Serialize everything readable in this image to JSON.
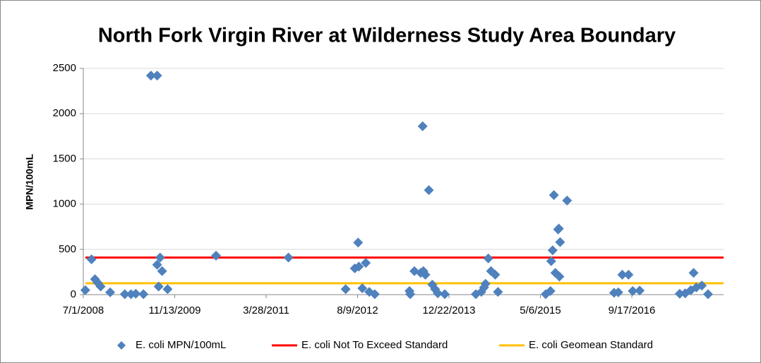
{
  "chart_data": {
    "type": "scatter",
    "title": "North Fork Virgin River at Wilderness Study Area Boundary",
    "y_label": "MPN/100mL",
    "xlim": [
      "2008-07-01",
      "2018-02-01"
    ],
    "xticks": [
      {
        "value": "2008-07-01",
        "label": "7/1/2008"
      },
      {
        "value": "2009-11-13",
        "label": "11/13/2009"
      },
      {
        "value": "2011-03-28",
        "label": "3/28/2011"
      },
      {
        "value": "2012-08-09",
        "label": "8/9/2012"
      },
      {
        "value": "2013-12-22",
        "label": "12/22/2013"
      },
      {
        "value": "2015-05-06",
        "label": "5/6/2015"
      },
      {
        "value": "2016-09-17",
        "label": "9/17/2016"
      }
    ],
    "ylim": [
      0,
      2500
    ],
    "yticks": [
      0,
      500,
      1000,
      1500,
      2000,
      2500
    ],
    "grid": true,
    "legend": "bottom",
    "series": [
      {
        "name": "E. coli MPN/100mL",
        "color": "#4f81bd",
        "mode": "markers",
        "x": [
          "2008-07-12",
          "2008-08-15",
          "2008-09-03",
          "2008-09-18",
          "2008-10-04",
          "2008-11-25",
          "2009-02-13",
          "2009-03-19",
          "2009-04-14",
          "2009-05-26",
          "2009-07-06",
          "2009-08-09",
          "2009-08-09",
          "2009-08-17",
          "2009-08-25",
          "2009-09-05",
          "2009-10-05",
          "2010-06-27",
          "2011-07-28",
          "2012-06-05",
          "2012-07-25",
          "2012-08-12",
          "2012-08-16",
          "2012-09-04",
          "2012-09-23",
          "2012-10-12",
          "2012-11-11",
          "2013-05-20",
          "2013-05-24",
          "2013-06-16",
          "2013-07-20",
          "2013-07-31",
          "2013-08-04",
          "2013-08-15",
          "2013-09-03",
          "2013-09-22",
          "2013-10-07",
          "2013-10-22",
          "2013-11-29",
          "2014-05-18",
          "2014-06-17",
          "2014-07-02",
          "2014-07-10",
          "2014-07-25",
          "2014-08-09",
          "2014-09-01",
          "2014-09-16",
          "2015-06-04",
          "2015-06-30",
          "2015-07-04",
          "2015-07-12",
          "2015-07-19",
          "2015-07-27",
          "2015-08-11",
          "2015-08-15",
          "2015-08-18",
          "2015-08-22",
          "2015-09-29",
          "2016-06-12",
          "2016-07-05",
          "2016-07-27",
          "2016-08-30",
          "2016-09-22",
          "2016-10-30",
          "2017-06-06",
          "2017-07-06",
          "2017-08-06",
          "2017-08-21",
          "2017-09-05",
          "2017-10-05",
          "2017-11-08"
        ],
        "values": [
          50,
          390,
          170,
          130,
          90,
          25,
          5,
          5,
          10,
          5,
          2420,
          2420,
          330,
          90,
          410,
          260,
          60,
          430,
          410,
          60,
          290,
          575,
          310,
          70,
          350,
          30,
          5,
          40,
          5,
          260,
          240,
          1860,
          260,
          220,
          1155,
          110,
          60,
          15,
          5,
          5,
          30,
          80,
          120,
          400,
          260,
          220,
          30,
          5,
          40,
          370,
          490,
          1100,
          240,
          720,
          730,
          200,
          580,
          1040,
          20,
          25,
          220,
          220,
          40,
          45,
          10,
          15,
          50,
          240,
          80,
          100,
          5
        ]
      },
      {
        "name": "E. coli Not To Exceed Standard",
        "color": "#ff0000",
        "mode": "line",
        "x": [
          "2008-07-12",
          "2018-02-01"
        ],
        "values": [
          410,
          410
        ]
      },
      {
        "name": "E. coli Geomean Standard",
        "color": "#ffc000",
        "mode": "line",
        "x": [
          "2008-07-12",
          "2018-02-01"
        ],
        "values": [
          126,
          126
        ]
      }
    ]
  }
}
